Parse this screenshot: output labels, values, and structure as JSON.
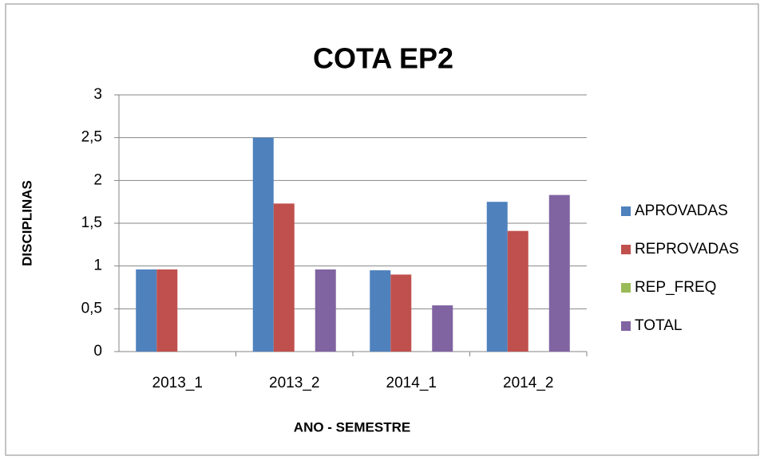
{
  "chart_data": {
    "type": "bar",
    "title": "COTA EP2",
    "x_label": "ANO - SEMESTRE",
    "y_label": "DISCIPLINAS",
    "categories": [
      "2013_1",
      "2013_2",
      "2014_1",
      "2014_2"
    ],
    "series": [
      {
        "name": "APROVADAS",
        "color": "#4f81bd",
        "values": [
          0.96,
          2.5,
          0.95,
          1.75
        ]
      },
      {
        "name": "REPROVADAS",
        "color": "#c0504d",
        "values": [
          0.96,
          1.73,
          0.9,
          1.41
        ]
      },
      {
        "name": "REP_FREQ",
        "color": "#9bbb59",
        "values": [
          0,
          0,
          0,
          0
        ]
      },
      {
        "name": "TOTAL",
        "color": "#8064a2",
        "values": [
          0,
          0.96,
          0.54,
          1.83
        ]
      }
    ],
    "ylim": [
      0,
      3
    ],
    "yticks": [
      0,
      {
        "value": 0.5,
        "label": "0,5"
      },
      1,
      {
        "value": 1.5,
        "label": "1,5"
      },
      2,
      {
        "value": 2.5,
        "label": "2,5"
      },
      3
    ],
    "grid": true,
    "legend": "right"
  }
}
